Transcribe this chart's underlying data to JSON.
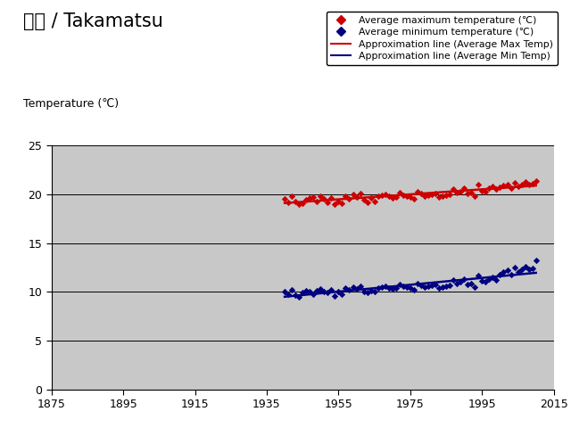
{
  "title_jp": "高松 / Takamatsu",
  "ylabel": "Temperature (℃)",
  "bg_color": "#c8c8c8",
  "fig_bg_color": "#ffffff",
  "xlim": [
    1875,
    2015
  ],
  "ylim": [
    0,
    25
  ],
  "xticks": [
    1875,
    1895,
    1915,
    1935,
    1955,
    1975,
    1995,
    2015
  ],
  "yticks": [
    0,
    5,
    10,
    15,
    20,
    25
  ],
  "red_color": "#cc0000",
  "blue_color": "#000080",
  "legend_entries": [
    "Average maximum temperature (℃)",
    "Average minimum temperature (℃)",
    "Approximation line (Average Max Temp)",
    "Approximation line (Average Min Temp)"
  ],
  "max_temp_years": [
    1940,
    1941,
    1942,
    1943,
    1944,
    1945,
    1946,
    1947,
    1948,
    1949,
    1950,
    1951,
    1952,
    1953,
    1954,
    1955,
    1956,
    1957,
    1958,
    1959,
    1960,
    1961,
    1962,
    1963,
    1964,
    1965,
    1966,
    1967,
    1968,
    1969,
    1970,
    1971,
    1972,
    1973,
    1974,
    1975,
    1976,
    1977,
    1978,
    1979,
    1980,
    1981,
    1982,
    1983,
    1984,
    1985,
    1986,
    1987,
    1988,
    1989,
    1990,
    1991,
    1992,
    1993,
    1994,
    1995,
    1996,
    1997,
    1998,
    1999,
    2000,
    2001,
    2002,
    2003,
    2004,
    2005,
    2006,
    2007,
    2008,
    2009,
    2010
  ],
  "max_temp_values": [
    19.5,
    19.2,
    19.8,
    19.3,
    19.0,
    19.1,
    19.4,
    19.6,
    19.7,
    19.3,
    19.8,
    19.5,
    19.2,
    19.6,
    19.0,
    19.3,
    19.1,
    19.8,
    19.5,
    20.0,
    19.7,
    20.1,
    19.4,
    19.2,
    19.6,
    19.3,
    19.8,
    19.9,
    20.0,
    19.8,
    19.6,
    19.7,
    20.2,
    19.9,
    19.8,
    19.7,
    19.5,
    20.3,
    20.1,
    19.8,
    19.9,
    20.0,
    20.1,
    19.7,
    19.8,
    19.9,
    20.0,
    20.5,
    20.2,
    20.3,
    20.6,
    20.1,
    20.2,
    19.8,
    21.0,
    20.4,
    20.3,
    20.6,
    20.8,
    20.5,
    20.7,
    20.9,
    21.0,
    20.6,
    21.2,
    20.8,
    21.0,
    21.3,
    21.0,
    21.1,
    21.4
  ],
  "min_temp_years": [
    1940,
    1941,
    1942,
    1943,
    1944,
    1945,
    1946,
    1947,
    1948,
    1949,
    1950,
    1951,
    1952,
    1953,
    1954,
    1955,
    1956,
    1957,
    1958,
    1959,
    1960,
    1961,
    1962,
    1963,
    1964,
    1965,
    1966,
    1967,
    1968,
    1969,
    1970,
    1971,
    1972,
    1973,
    1974,
    1975,
    1976,
    1977,
    1978,
    1979,
    1980,
    1981,
    1982,
    1983,
    1984,
    1985,
    1986,
    1987,
    1988,
    1989,
    1990,
    1991,
    1992,
    1993,
    1994,
    1995,
    1996,
    1997,
    1998,
    1999,
    2000,
    2001,
    2002,
    2003,
    2004,
    2005,
    2006,
    2007,
    2008,
    2009,
    2010
  ],
  "min_temp_values": [
    10.0,
    9.8,
    10.2,
    9.7,
    9.5,
    9.9,
    10.1,
    10.0,
    9.8,
    10.1,
    10.3,
    10.0,
    9.9,
    10.2,
    9.6,
    10.0,
    9.8,
    10.4,
    10.2,
    10.5,
    10.3,
    10.6,
    10.0,
    9.9,
    10.1,
    10.0,
    10.4,
    10.5,
    10.6,
    10.4,
    10.3,
    10.4,
    10.8,
    10.6,
    10.5,
    10.4,
    10.2,
    10.9,
    10.7,
    10.5,
    10.6,
    10.7,
    10.8,
    10.4,
    10.5,
    10.6,
    10.7,
    11.2,
    10.9,
    11.0,
    11.3,
    10.8,
    10.9,
    10.5,
    11.7,
    11.1,
    11.0,
    11.3,
    11.5,
    11.2,
    11.8,
    12.0,
    12.2,
    11.8,
    12.5,
    12.0,
    12.3,
    12.6,
    12.3,
    12.4,
    13.2
  ]
}
